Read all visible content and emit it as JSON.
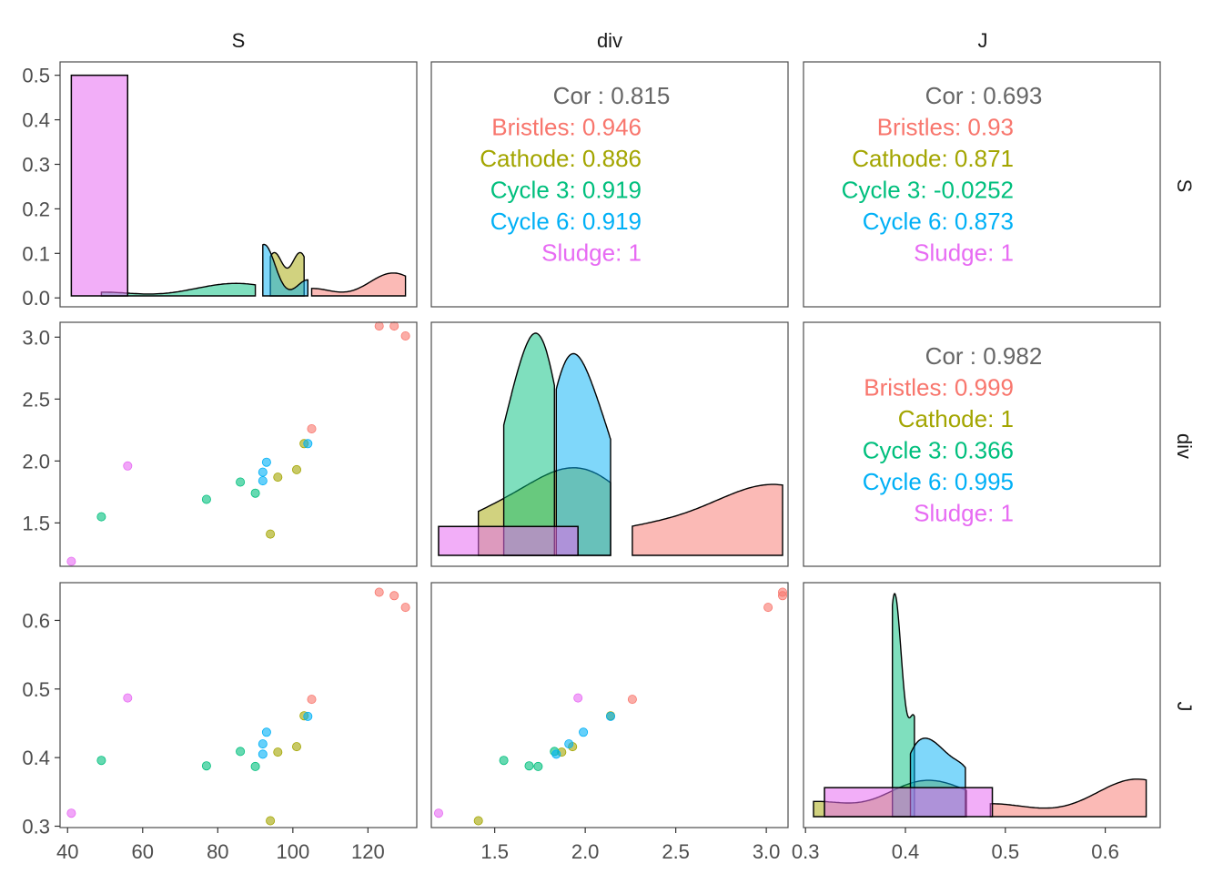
{
  "chart_data": {
    "type": "scatter",
    "title": "",
    "variables": [
      "S",
      "div",
      "J"
    ],
    "colors": {
      "Bristles": "#F8766D",
      "Cathode": "#A3A500",
      "Cycle 3": "#00BF7D",
      "Cycle 6": "#00B0F6",
      "Sludge": "#E76BF3",
      "overall": "#666666"
    },
    "axes": {
      "S": {
        "range": [
          38,
          133
        ],
        "ticks": [
          "40",
          "60",
          "80",
          "100",
          "120"
        ],
        "tick_values": [
          40,
          60,
          80,
          100,
          120
        ]
      },
      "div": {
        "range": [
          1.15,
          3.12
        ],
        "ticks": [
          "1.5",
          "2.0",
          "2.5",
          "3.0"
        ],
        "tick_values": [
          1.5,
          2.0,
          2.5,
          3.0
        ]
      },
      "J": {
        "range": [
          0.298,
          0.655
        ],
        "ticks": [
          "0.3",
          "0.4",
          "0.5",
          "0.6"
        ],
        "tick_values": [
          0.3,
          0.4,
          0.5,
          0.6
        ]
      },
      "S_density": {
        "range": [
          -0.02,
          0.53
        ],
        "ticks": [
          "0.0",
          "0.1",
          "0.2",
          "0.3",
          "0.4",
          "0.5"
        ],
        "tick_values": [
          0,
          0.1,
          0.2,
          0.3,
          0.4,
          0.5
        ]
      }
    },
    "points": [
      {
        "group": "Bristles",
        "S": 123,
        "div": 3.09,
        "J": 0.641
      },
      {
        "group": "Bristles",
        "S": 127,
        "div": 3.09,
        "J": 0.636
      },
      {
        "group": "Bristles",
        "S": 130,
        "div": 3.01,
        "J": 0.619
      },
      {
        "group": "Bristles",
        "S": 105,
        "div": 2.26,
        "J": 0.485
      },
      {
        "group": "Cathode",
        "S": 103,
        "div": 2.14,
        "J": 0.461
      },
      {
        "group": "Cathode",
        "S": 101,
        "div": 1.93,
        "J": 0.416
      },
      {
        "group": "Cathode",
        "S": 96,
        "div": 1.87,
        "J": 0.408
      },
      {
        "group": "Cathode",
        "S": 94,
        "div": 1.41,
        "J": 0.308
      },
      {
        "group": "Cycle 3",
        "S": 49,
        "div": 1.55,
        "J": 0.396
      },
      {
        "group": "Cycle 3",
        "S": 77,
        "div": 1.69,
        "J": 0.388
      },
      {
        "group": "Cycle 3",
        "S": 86,
        "div": 1.83,
        "J": 0.409
      },
      {
        "group": "Cycle 3",
        "S": 90,
        "div": 1.74,
        "J": 0.387
      },
      {
        "group": "Cycle 6",
        "S": 92,
        "div": 1.84,
        "J": 0.405
      },
      {
        "group": "Cycle 6",
        "S": 92,
        "div": 1.91,
        "J": 0.42
      },
      {
        "group": "Cycle 6",
        "S": 93,
        "div": 1.99,
        "J": 0.437
      },
      {
        "group": "Cycle 6",
        "S": 104,
        "div": 2.14,
        "J": 0.46
      },
      {
        "group": "Sludge",
        "S": 41,
        "div": 1.19,
        "J": 0.319
      },
      {
        "group": "Sludge",
        "S": 56,
        "div": 1.96,
        "J": 0.487
      }
    ],
    "correlations": [
      {
        "panel": "S-div",
        "overall_label": "Cor : 0.815",
        "groups": [
          {
            "group": "Bristles",
            "label": "Bristles: 0.946"
          },
          {
            "group": "Cathode",
            "label": "Cathode: 0.886"
          },
          {
            "group": "Cycle 3",
            "label": "Cycle 3: 0.919"
          },
          {
            "group": "Cycle 6",
            "label": "Cycle 6: 0.919"
          },
          {
            "group": "Sludge",
            "label": "Sludge: 1"
          }
        ]
      },
      {
        "panel": "S-J",
        "overall_label": "Cor : 0.693",
        "groups": [
          {
            "group": "Bristles",
            "label": "Bristles: 0.93"
          },
          {
            "group": "Cathode",
            "label": "Cathode: 0.871"
          },
          {
            "group": "Cycle 3",
            "label": "Cycle 3: -0.0252"
          },
          {
            "group": "Cycle 6",
            "label": "Cycle 6: 0.873"
          },
          {
            "group": "Sludge",
            "label": "Sludge: 1"
          }
        ]
      },
      {
        "panel": "div-J",
        "overall_label": "Cor : 0.982",
        "groups": [
          {
            "group": "Bristles",
            "label": "Bristles: 0.999"
          },
          {
            "group": "Cathode",
            "label": "Cathode: 1"
          },
          {
            "group": "Cycle 3",
            "label": "Cycle 3: 0.366"
          },
          {
            "group": "Cycle 6",
            "label": "Cycle 6: 0.995"
          },
          {
            "group": "Sludge",
            "label": "Sludge: 1"
          }
        ]
      }
    ],
    "grid": false,
    "legend": "none"
  }
}
